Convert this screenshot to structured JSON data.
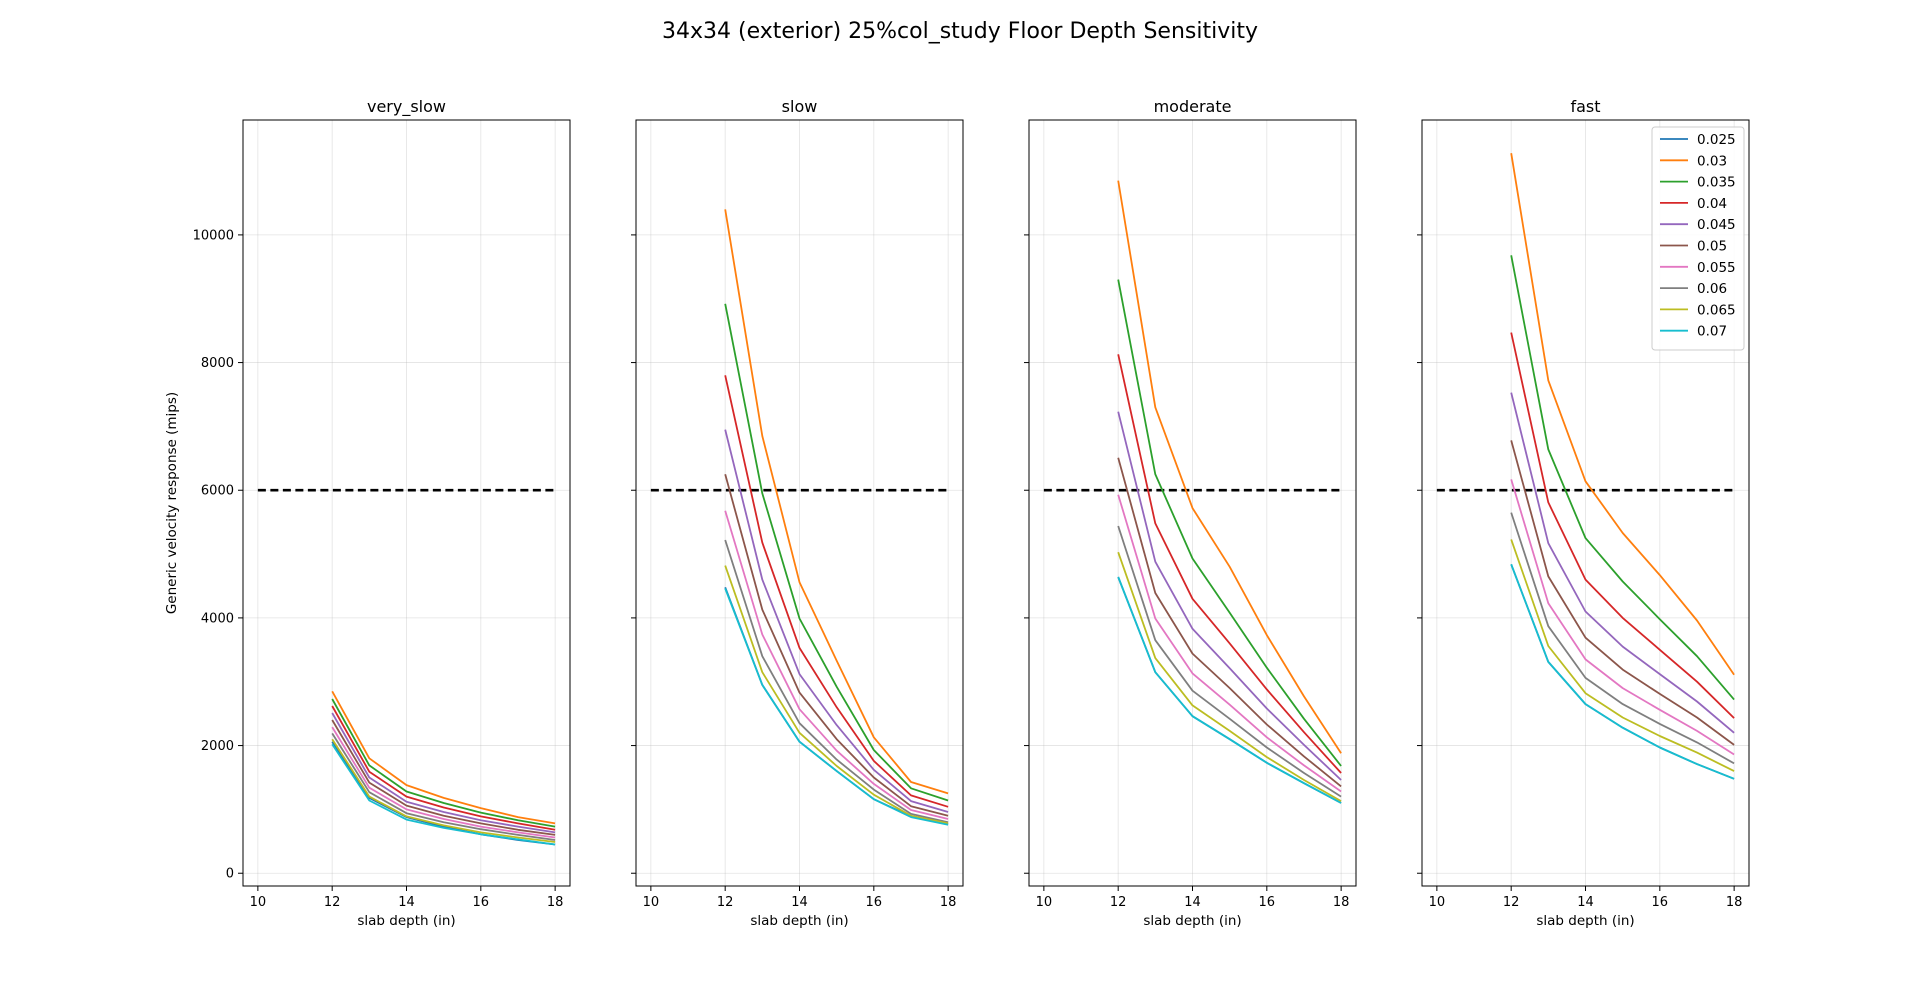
{
  "figure": {
    "title": "34x34 (exterior) 25%col_study Floor Depth Sensitivity"
  },
  "chart_data": {
    "type": "line",
    "shared_y": true,
    "xlabel": "slab depth (in)",
    "ylabel": "Generic velocity response (mips)",
    "xlim": [
      9.6,
      18.4
    ],
    "ylim": [
      -200,
      11800
    ],
    "xticks": [
      10,
      12,
      14,
      16,
      18
    ],
    "yticks": [
      0,
      2000,
      4000,
      6000,
      8000,
      10000
    ],
    "grid": true,
    "legend_location": "upper-right of last panel",
    "threshold": {
      "y": 6000,
      "x": [
        10,
        18
      ],
      "style": "dashed",
      "color": "#000000"
    },
    "x": [
      12,
      13,
      14,
      15,
      16,
      17,
      18
    ],
    "series_names": [
      "0.025",
      "0.03",
      "0.035",
      "0.04",
      "0.045",
      "0.05",
      "0.055",
      "0.06",
      "0.065",
      "0.07"
    ],
    "series_colors": [
      "#1f77b4",
      "#ff7f0e",
      "#2ca02c",
      "#d62728",
      "#9467bd",
      "#8c564b",
      "#e377c2",
      "#7f7f7f",
      "#bcbd22",
      "#17becf"
    ],
    "panels": [
      {
        "title": "very_slow",
        "series": [
          [
            2060,
            1180,
            880,
            730,
            610,
            520,
            450
          ],
          [
            2850,
            1800,
            1380,
            1180,
            1020,
            880,
            780
          ],
          [
            2730,
            1690,
            1280,
            1100,
            950,
            830,
            730
          ],
          [
            2620,
            1590,
            1200,
            1030,
            890,
            780,
            680
          ],
          [
            2510,
            1500,
            1120,
            960,
            830,
            730,
            640
          ],
          [
            2400,
            1420,
            1060,
            900,
            780,
            680,
            600
          ],
          [
            2290,
            1340,
            1000,
            850,
            730,
            640,
            560
          ],
          [
            2190,
            1270,
            940,
            800,
            690,
            600,
            520
          ],
          [
            2100,
            1200,
            890,
            750,
            640,
            560,
            490
          ],
          [
            2020,
            1140,
            840,
            710,
            610,
            530,
            450
          ]
        ]
      },
      {
        "title": "slow",
        "series": [
          [
            4480,
            2950,
            2060,
            1600,
            1160,
            890,
            770
          ],
          [
            10400,
            6850,
            4560,
            3330,
            2130,
            1430,
            1250
          ],
          [
            8920,
            5950,
            3990,
            2920,
            1930,
            1330,
            1140
          ],
          [
            7800,
            5180,
            3530,
            2600,
            1760,
            1220,
            1040
          ],
          [
            6950,
            4600,
            3120,
            2320,
            1620,
            1130,
            960
          ],
          [
            6250,
            4130,
            2830,
            2100,
            1500,
            1050,
            900
          ],
          [
            5680,
            3740,
            2570,
            1920,
            1400,
            990,
            850
          ],
          [
            5220,
            3400,
            2350,
            1780,
            1310,
            930,
            800
          ],
          [
            4820,
            3150,
            2200,
            1680,
            1230,
            900,
            780
          ],
          [
            4460,
            2950,
            2060,
            1600,
            1160,
            880,
            760
          ]
        ]
      },
      {
        "title": "moderate",
        "series": [
          [
            4640,
            3150,
            2460,
            2100,
            1730,
            1410,
            1100
          ],
          [
            10850,
            7300,
            5720,
            4800,
            3730,
            2770,
            1880
          ],
          [
            9300,
            6250,
            4930,
            4080,
            3220,
            2420,
            1680
          ],
          [
            8130,
            5480,
            4300,
            3600,
            2880,
            2210,
            1570
          ],
          [
            7230,
            4880,
            3830,
            3210,
            2580,
            2010,
            1460
          ],
          [
            6510,
            4390,
            3440,
            2900,
            2330,
            1830,
            1360
          ],
          [
            5930,
            3990,
            3130,
            2640,
            2130,
            1690,
            1280
          ],
          [
            5440,
            3650,
            2860,
            2420,
            1970,
            1570,
            1200
          ],
          [
            5030,
            3370,
            2630,
            2230,
            1820,
            1460,
            1130
          ],
          [
            4640,
            3150,
            2460,
            2100,
            1730,
            1410,
            1100
          ]
        ]
      },
      {
        "title": "fast",
        "series": [
          [
            4840,
            3310,
            2650,
            2280,
            1970,
            1710,
            1480
          ],
          [
            11280,
            7720,
            6140,
            5330,
            4670,
            3960,
            3110
          ],
          [
            9680,
            6640,
            5250,
            4570,
            3980,
            3400,
            2720
          ],
          [
            8470,
            5810,
            4600,
            4000,
            3500,
            3000,
            2430
          ],
          [
            7530,
            5170,
            4100,
            3550,
            3120,
            2690,
            2200
          ],
          [
            6780,
            4650,
            3690,
            3190,
            2810,
            2440,
            2010
          ],
          [
            6170,
            4230,
            3350,
            2900,
            2560,
            2230,
            1860
          ],
          [
            5650,
            3870,
            3060,
            2650,
            2340,
            2050,
            1720
          ],
          [
            5230,
            3560,
            2820,
            2440,
            2150,
            1890,
            1600
          ],
          [
            4840,
            3310,
            2650,
            2280,
            1970,
            1710,
            1480
          ]
        ]
      }
    ]
  }
}
